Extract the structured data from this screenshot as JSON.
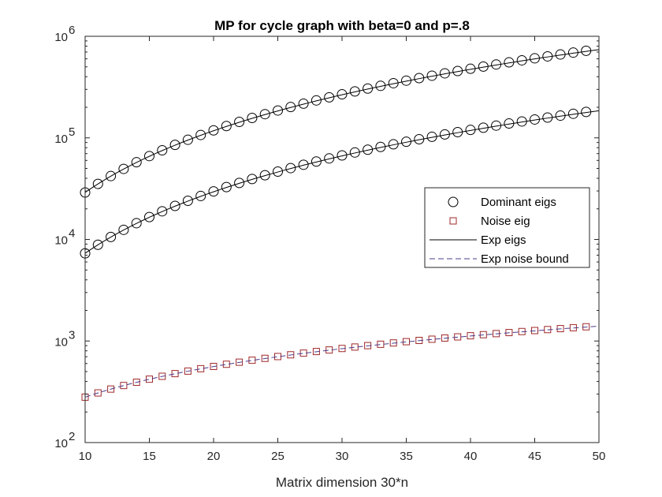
{
  "chart_data": {
    "type": "line",
    "title": "MP for cycle graph with beta=0 and p=.8",
    "xlabel": "Matrix dimension 30*n",
    "ylabel": "",
    "xlim": [
      10,
      50
    ],
    "ylim": [
      100,
      1000000
    ],
    "yscale": "log",
    "xticks": [
      10,
      15,
      20,
      25,
      30,
      35,
      40,
      45,
      50
    ],
    "yticks": [
      {
        "value": 100,
        "base": "10",
        "exp": "2"
      },
      {
        "value": 1000,
        "base": "10",
        "exp": "3"
      },
      {
        "value": 10000,
        "base": "10",
        "exp": "4"
      },
      {
        "value": 100000,
        "base": "10",
        "exp": "5"
      },
      {
        "value": 1000000,
        "base": "10",
        "exp": "6"
      }
    ],
    "series": [
      {
        "name": "Dominant eigs (upper)",
        "legend_group": "Dominant eigs",
        "style": "marker",
        "marker": "circle",
        "color": "#000000",
        "x_start": 10,
        "x_end": 49,
        "y_start": 29000,
        "y_end": 720000,
        "exponent": 2
      },
      {
        "name": "Dominant eigs (lower)",
        "legend_group": "Dominant eigs",
        "style": "marker",
        "marker": "circle",
        "color": "#000000",
        "x_start": 10,
        "x_end": 49,
        "y_start": 7300,
        "y_end": 180000,
        "exponent": 2
      },
      {
        "name": "Noise eig",
        "style": "marker",
        "marker": "square",
        "color": "#a0282a",
        "x_start": 10,
        "x_end": 49,
        "y_start": 280,
        "y_end": 1380,
        "exponent": 1
      },
      {
        "name": "Exp eigs (upper)",
        "legend_group": "Exp eigs",
        "style": "line",
        "color": "#000000",
        "x_start": 10,
        "x_end": 50,
        "y_start": 29000,
        "y_end": 740000,
        "exponent": 2
      },
      {
        "name": "Exp eigs (lower)",
        "legend_group": "Exp eigs",
        "style": "line",
        "color": "#000000",
        "x_start": 10,
        "x_end": 50,
        "y_start": 7300,
        "y_end": 185000,
        "exponent": 2
      },
      {
        "name": "Exp noise bound",
        "style": "dashed",
        "color": "#4b3c8c",
        "x_start": 10,
        "x_end": 50,
        "y_start": 280,
        "y_end": 1400,
        "exponent": 1
      }
    ],
    "legend": {
      "position": "right-middle",
      "entries": [
        {
          "label": "Dominant eigs",
          "symbol": "circle",
          "color": "#000000"
        },
        {
          "label": "Noise eig",
          "symbol": "square",
          "color": "#a0282a"
        },
        {
          "label": "Exp eigs",
          "symbol": "line",
          "color": "#000000"
        },
        {
          "label": "Exp noise bound",
          "symbol": "dashed",
          "color": "#4b3c8c"
        }
      ]
    }
  }
}
